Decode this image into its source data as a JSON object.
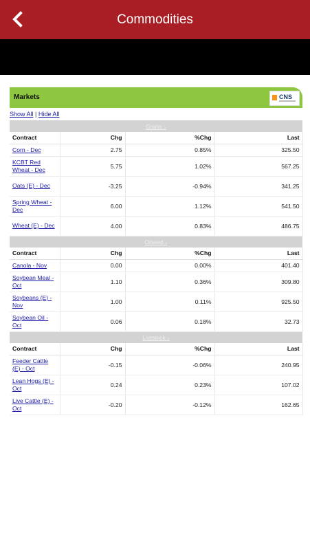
{
  "header": {
    "title": "Commodities"
  },
  "widget": {
    "title": "Markets",
    "logo_text": "CNS",
    "show_all": "Show All",
    "separator": "|",
    "hide_all": "Hide All"
  },
  "columns": {
    "contract": "Contract",
    "chg": "Chg",
    "pct": "%Chg",
    "last": "Last"
  },
  "sections": [
    {
      "name": "Grains ↓",
      "rows": [
        {
          "contract": "Corn - Dec",
          "chg": "2.75",
          "pct": "0.85%",
          "last": "325.50",
          "dir": "pos"
        },
        {
          "contract": "KCBT Red Wheat - Dec",
          "chg": "5.75",
          "pct": "1.02%",
          "last": "567.25",
          "dir": "pos"
        },
        {
          "contract": "Oats (E) - Dec",
          "chg": "-3.25",
          "pct": "-0.94%",
          "last": "341.25",
          "dir": "neg"
        },
        {
          "contract": "Spring Wheat - Dec",
          "chg": "6.00",
          "pct": "1.12%",
          "last": "541.50",
          "dir": "pos"
        },
        {
          "contract": "Wheat (E) - Dec",
          "chg": "4.00",
          "pct": "0.83%",
          "last": "486.75",
          "dir": "pos"
        }
      ]
    },
    {
      "name": "Oilseed ↓",
      "rows": [
        {
          "contract": "Canola - Nov",
          "chg": "0.00",
          "pct": "0.00%",
          "last": "401.40",
          "dir": "zero"
        },
        {
          "contract": "Soybean Meal - Oct",
          "chg": "1.10",
          "pct": "0.36%",
          "last": "309.80",
          "dir": "pos"
        },
        {
          "contract": "Soybeans (E) - Nov",
          "chg": "1.00",
          "pct": "0.11%",
          "last": "925.50",
          "dir": "pos"
        },
        {
          "contract": "Soybean Oil - Oct",
          "chg": "0.06",
          "pct": "0.18%",
          "last": "32.73",
          "dir": "pos"
        }
      ]
    },
    {
      "name": "Livestock ↓",
      "rows": [
        {
          "contract": "Feeder Cattle (E) - Oct",
          "chg": "-0.15",
          "pct": "-0.06%",
          "last": "240.95",
          "dir": "neg"
        },
        {
          "contract": "Lean Hogs (E) - Oct",
          "chg": "0.24",
          "pct": "0.23%",
          "last": "107.02",
          "dir": "pos"
        },
        {
          "contract": "Live Cattle (E) - Oct",
          "chg": "-0.20",
          "pct": "-0.12%",
          "last": "162.65",
          "dir": "neg"
        }
      ]
    }
  ]
}
